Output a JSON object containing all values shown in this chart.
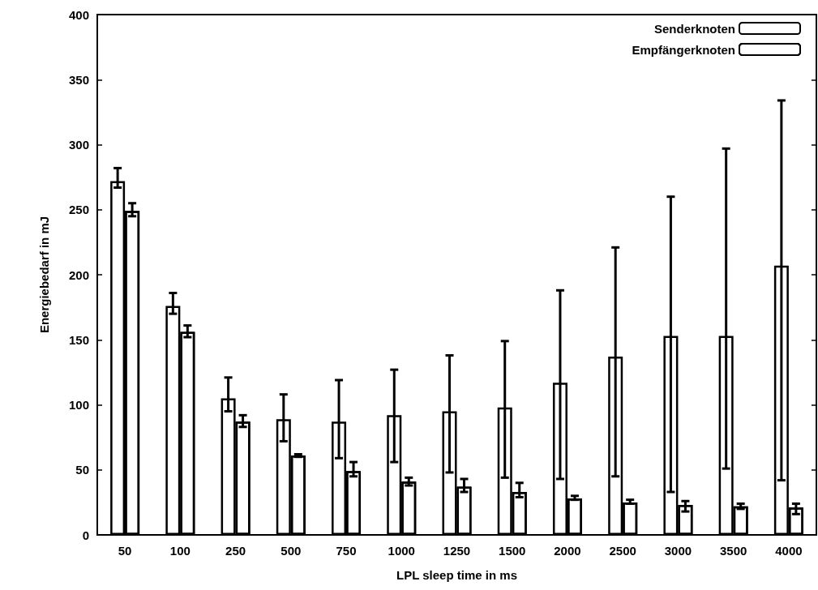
{
  "chart_data": {
    "type": "bar",
    "xlabel": "LPL sleep time in ms",
    "ylabel": "Energiebedarf in mJ",
    "categories": [
      "50",
      "100",
      "250",
      "500",
      "750",
      "1000",
      "1250",
      "1500",
      "2000",
      "2500",
      "3000",
      "3500",
      "4000"
    ],
    "series": [
      {
        "name": "Senderknoten",
        "color": "#ffffff",
        "values": [
          272,
          176,
          105,
          89,
          87,
          92,
          95,
          98,
          117,
          137,
          153,
          153,
          207
        ],
        "errors": [
          [
            267,
            282
          ],
          [
            170,
            186
          ],
          [
            95,
            121
          ],
          [
            72,
            108
          ],
          [
            59,
            119
          ],
          [
            56,
            127
          ],
          [
            48,
            138
          ],
          [
            44,
            149
          ],
          [
            43,
            188
          ],
          [
            45,
            221
          ],
          [
            33,
            260
          ],
          [
            51,
            297
          ],
          [
            42,
            334
          ]
        ]
      },
      {
        "name": "Empfängerknoten",
        "color": "#000000",
        "values": [
          249,
          156,
          87,
          61,
          49,
          41,
          37,
          33,
          28,
          25,
          23,
          22,
          21
        ],
        "errors": [
          [
            245,
            255
          ],
          [
            152,
            161
          ],
          [
            83,
            92
          ],
          [
            60,
            62
          ],
          [
            45,
            56
          ],
          [
            38,
            44
          ],
          [
            33,
            43
          ],
          [
            29,
            40
          ],
          [
            27,
            30
          ],
          [
            24,
            27
          ],
          [
            18,
            26
          ],
          [
            20,
            24
          ],
          [
            16,
            24
          ]
        ]
      }
    ],
    "ylim": [
      0,
      400
    ],
    "yticks": [
      0,
      50,
      100,
      150,
      200,
      250,
      300,
      350,
      400
    ],
    "grid": false,
    "legend": "top right"
  }
}
